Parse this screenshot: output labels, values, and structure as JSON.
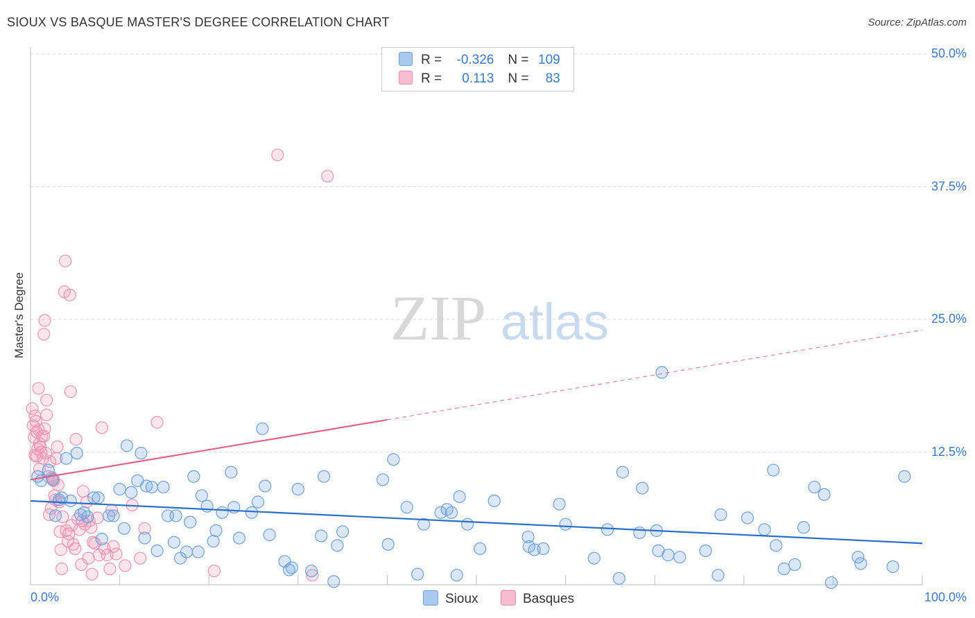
{
  "header": {
    "title": "SIOUX VS BASQUE MASTER'S DEGREE CORRELATION CHART",
    "source": "Source: ZipAtlas.com"
  },
  "watermark": {
    "zip": "ZIP",
    "atlas": "atlas"
  },
  "legend": {
    "rows": [
      {
        "r_label": "R = ",
        "r_value": "-0.326",
        "n_label": "N = ",
        "n_value": "109",
        "color": "#a9c9f0",
        "border": "#6fa0d8"
      },
      {
        "r_label": "R = ",
        "r_value": "0.113",
        "n_label": "N = ",
        "n_value": "83",
        "color": "#f7bcd0",
        "border": "#e88aaa"
      }
    ]
  },
  "bottom_legend": {
    "sioux": "Sioux",
    "basques": "Basques"
  },
  "colors": {
    "sioux_fill": "rgba(120,170,230,0.28)",
    "sioux_stroke": "#6ea0dc",
    "sioux_line": "#2a6fcc",
    "basque_fill": "rgba(245,160,190,0.28)",
    "basque_stroke": "#ea94b2",
    "basque_line": "#e0608c",
    "tick_text": "#3a78c9",
    "grid": "#d9d9d9"
  },
  "chart_data": {
    "type": "scatter",
    "title": "SIOUX VS BASQUE MASTER'S DEGREE CORRELATION CHART",
    "xlabel": "",
    "ylabel": "Master's Degree",
    "xlim": [
      0,
      100
    ],
    "ylim": [
      0,
      50
    ],
    "x_tick_labels": [
      "0.0%",
      "100.0%"
    ],
    "y_ticks": [
      12.5,
      25.0,
      37.5,
      50.0
    ],
    "y_tick_labels": [
      "12.5%",
      "25.0%",
      "37.5%",
      "50.0%"
    ],
    "grid": true,
    "series": [
      {
        "name": "Sioux",
        "r": -0.326,
        "n": 109,
        "trend": {
          "x": [
            0,
            100
          ],
          "y": [
            7.9,
            3.9
          ],
          "dashed_from": null
        },
        "points": [
          [
            0.8,
            10.2
          ],
          [
            1.2,
            9.8
          ],
          [
            2.0,
            10.8
          ],
          [
            2.5,
            9.9
          ],
          [
            2.8,
            6.5
          ],
          [
            3.2,
            8.0
          ],
          [
            3.5,
            8.2
          ],
          [
            4.0,
            11.9
          ],
          [
            4.5,
            7.9
          ],
          [
            5.2,
            12.4
          ],
          [
            5.6,
            6.6
          ],
          [
            6.0,
            6.8
          ],
          [
            6.4,
            6.4
          ],
          [
            7.1,
            8.2
          ],
          [
            7.6,
            8.2
          ],
          [
            8.0,
            4.3
          ],
          [
            8.8,
            6.5
          ],
          [
            9.3,
            6.5
          ],
          [
            10.0,
            9.0
          ],
          [
            10.5,
            5.3
          ],
          [
            10.8,
            13.1
          ],
          [
            11.3,
            8.7
          ],
          [
            12.0,
            9.8
          ],
          [
            12.4,
            12.4
          ],
          [
            12.8,
            4.4
          ],
          [
            13.0,
            9.3
          ],
          [
            13.6,
            9.2
          ],
          [
            14.2,
            3.2
          ],
          [
            14.9,
            9.2
          ],
          [
            15.4,
            6.5
          ],
          [
            16.3,
            6.5
          ],
          [
            16.1,
            4.0
          ],
          [
            16.8,
            2.5
          ],
          [
            17.5,
            3.1
          ],
          [
            17.9,
            5.9
          ],
          [
            18.3,
            10.2
          ],
          [
            18.8,
            3.1
          ],
          [
            19.2,
            8.4
          ],
          [
            19.8,
            7.4
          ],
          [
            20.5,
            4.1
          ],
          [
            20.8,
            5.1
          ],
          [
            21.5,
            6.8
          ],
          [
            22.5,
            10.6
          ],
          [
            22.8,
            7.3
          ],
          [
            23.4,
            4.4
          ],
          [
            24.8,
            6.8
          ],
          [
            25.5,
            7.8
          ],
          [
            26.0,
            14.7
          ],
          [
            26.3,
            9.3
          ],
          [
            26.8,
            4.7
          ],
          [
            28.5,
            2.2
          ],
          [
            29.0,
            1.4
          ],
          [
            29.3,
            1.6
          ],
          [
            30.0,
            9.0
          ],
          [
            31.5,
            1.3
          ],
          [
            32.6,
            4.6
          ],
          [
            32.9,
            10.2
          ],
          [
            34.0,
            0.3
          ],
          [
            34.4,
            3.7
          ],
          [
            35.0,
            5.0
          ],
          [
            39.5,
            9.9
          ],
          [
            40.1,
            3.8
          ],
          [
            40.7,
            11.8
          ],
          [
            42.2,
            7.3
          ],
          [
            43.4,
            1.0
          ],
          [
            44.1,
            5.7
          ],
          [
            46.0,
            6.8
          ],
          [
            46.7,
            7.1
          ],
          [
            47.2,
            6.8
          ],
          [
            47.8,
            0.9
          ],
          [
            48.1,
            8.3
          ],
          [
            49.0,
            5.7
          ],
          [
            50.4,
            3.4
          ],
          [
            52.0,
            7.9
          ],
          [
            55.8,
            4.5
          ],
          [
            55.9,
            3.6
          ],
          [
            56.5,
            3.3
          ],
          [
            57.5,
            3.4
          ],
          [
            59.3,
            7.6
          ],
          [
            60.0,
            5.7
          ],
          [
            63.2,
            2.5
          ],
          [
            64.7,
            5.2
          ],
          [
            66.0,
            0.6
          ],
          [
            66.4,
            10.6
          ],
          [
            68.3,
            4.9
          ],
          [
            68.6,
            9.1
          ],
          [
            70.2,
            5.1
          ],
          [
            70.8,
            20.0
          ],
          [
            70.4,
            3.2
          ],
          [
            71.5,
            2.8
          ],
          [
            72.8,
            2.6
          ],
          [
            75.7,
            3.2
          ],
          [
            77.1,
            0.9
          ],
          [
            77.4,
            6.6
          ],
          [
            80.4,
            6.3
          ],
          [
            82.3,
            5.2
          ],
          [
            83.3,
            10.8
          ],
          [
            83.6,
            3.7
          ],
          [
            84.5,
            1.5
          ],
          [
            85.7,
            1.9
          ],
          [
            86.7,
            5.4
          ],
          [
            87.9,
            9.2
          ],
          [
            89.0,
            8.5
          ],
          [
            89.8,
            0.2
          ],
          [
            92.8,
            2.6
          ],
          [
            93.1,
            2.0
          ],
          [
            96.7,
            1.7
          ],
          [
            98.0,
            10.2
          ]
        ]
      },
      {
        "name": "Basques",
        "r": 0.113,
        "n": 83,
        "trend": {
          "x": [
            0,
            100
          ],
          "y": [
            9.9,
            24.0
          ],
          "dashed_from": 40
        },
        "points": [
          [
            0.2,
            16.6
          ],
          [
            0.3,
            15.0
          ],
          [
            0.4,
            13.9
          ],
          [
            0.5,
            15.9
          ],
          [
            0.6,
            15.4
          ],
          [
            0.7,
            14.4
          ],
          [
            0.8,
            12.8
          ],
          [
            0.9,
            14.6
          ],
          [
            1.0,
            13.3
          ],
          [
            1.1,
            13.0
          ],
          [
            1.2,
            12.5
          ],
          [
            1.3,
            14.0
          ],
          [
            1.4,
            11.9
          ],
          [
            1.5,
            14.0
          ],
          [
            1.6,
            14.7
          ],
          [
            1.7,
            12.4
          ],
          [
            1.8,
            16.0
          ],
          [
            0.9,
            18.5
          ],
          [
            1.5,
            23.6
          ],
          [
            1.6,
            24.9
          ],
          [
            2.0,
            10.2
          ],
          [
            2.2,
            11.6
          ],
          [
            2.3,
            7.2
          ],
          [
            2.5,
            10.0
          ],
          [
            2.6,
            9.8
          ],
          [
            2.7,
            8.4
          ],
          [
            2.8,
            8.0
          ],
          [
            2.9,
            11.9
          ],
          [
            3.0,
            13.0
          ],
          [
            3.2,
            7.8
          ],
          [
            3.3,
            5.0
          ],
          [
            3.4,
            3.3
          ],
          [
            3.5,
            1.5
          ],
          [
            3.6,
            6.4
          ],
          [
            3.8,
            27.6
          ],
          [
            3.9,
            30.5
          ],
          [
            4.0,
            5.1
          ],
          [
            4.2,
            4.1
          ],
          [
            4.3,
            4.8
          ],
          [
            4.4,
            27.3
          ],
          [
            4.5,
            18.2
          ],
          [
            4.6,
            5.6
          ],
          [
            4.8,
            3.8
          ],
          [
            5.0,
            3.4
          ],
          [
            5.1,
            13.7
          ],
          [
            5.3,
            6.2
          ],
          [
            5.5,
            5.2
          ],
          [
            5.7,
            1.9
          ],
          [
            5.9,
            8.8
          ],
          [
            6.1,
            5.7
          ],
          [
            6.3,
            7.8
          ],
          [
            6.5,
            2.5
          ],
          [
            6.6,
            6.0
          ],
          [
            6.8,
            5.4
          ],
          [
            7.0,
            4.0
          ],
          [
            7.2,
            3.9
          ],
          [
            7.5,
            6.3
          ],
          [
            7.7,
            2.8
          ],
          [
            8.0,
            14.8
          ],
          [
            8.3,
            3.4
          ],
          [
            8.6,
            2.8
          ],
          [
            8.9,
            1.5
          ],
          [
            9.1,
            7.0
          ],
          [
            9.3,
            3.6
          ],
          [
            9.6,
            2.9
          ],
          [
            10.6,
            1.8
          ],
          [
            11.4,
            7.5
          ],
          [
            12.3,
            2.5
          ],
          [
            12.8,
            5.3
          ],
          [
            14.2,
            15.3
          ],
          [
            20.6,
            1.3
          ],
          [
            27.7,
            40.5
          ],
          [
            33.3,
            38.5
          ],
          [
            1.8,
            17.4
          ],
          [
            2.4,
            10.1
          ],
          [
            0.5,
            12.2
          ],
          [
            0.7,
            12.1
          ],
          [
            1.0,
            10.9
          ],
          [
            2.1,
            6.6
          ],
          [
            3.1,
            9.4
          ],
          [
            5.8,
            6.0
          ],
          [
            31.6,
            0.9
          ],
          [
            6.9,
            1.0
          ]
        ]
      }
    ]
  }
}
